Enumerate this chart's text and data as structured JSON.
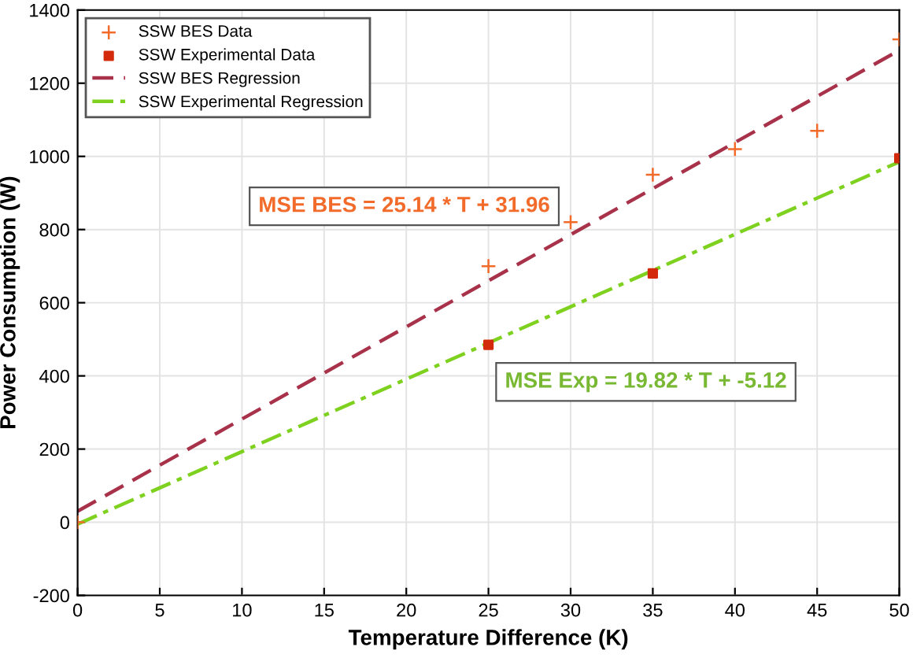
{
  "chart_data": {
    "type": "scatter",
    "xlabel": "Temperature Difference (K)",
    "ylabel": "Power Consumption (W)",
    "xlim": [
      0,
      50
    ],
    "ylim": [
      -200,
      1400
    ],
    "xticks": [
      0,
      5,
      10,
      15,
      20,
      25,
      30,
      35,
      40,
      45,
      50
    ],
    "yticks": [
      -200,
      0,
      200,
      400,
      600,
      800,
      1000,
      1200,
      1400
    ],
    "grid": true,
    "legend": "top left",
    "series": [
      {
        "name": "SSW BES Data",
        "marker": "cross",
        "color": "#f26b2b",
        "x": [
          0,
          25,
          30,
          35,
          40,
          45,
          50
        ],
        "values": [
          0,
          700,
          820,
          950,
          1020,
          1070,
          1320
        ]
      },
      {
        "name": "SSW Experimental Data",
        "marker": "square",
        "color": "#d42a0c",
        "x": [
          25,
          35,
          50
        ],
        "values": [
          485,
          680,
          995
        ]
      },
      {
        "name": "SSW BES Regression",
        "type": "line",
        "line_style": "dashed",
        "color": "#a8324a",
        "x": [
          0,
          50
        ],
        "values": [
          30,
          1290
        ]
      },
      {
        "name": "SSW Experimental Regression",
        "type": "line",
        "line_style": "dashdot",
        "color": "#7fd11f",
        "x": [
          0,
          50
        ],
        "values": [
          -5,
          985
        ]
      }
    ],
    "annotations": [
      "MSE BES = 25.14 * T + 31.96",
      "MSE Exp = 19.82 * T + -5.12"
    ]
  }
}
